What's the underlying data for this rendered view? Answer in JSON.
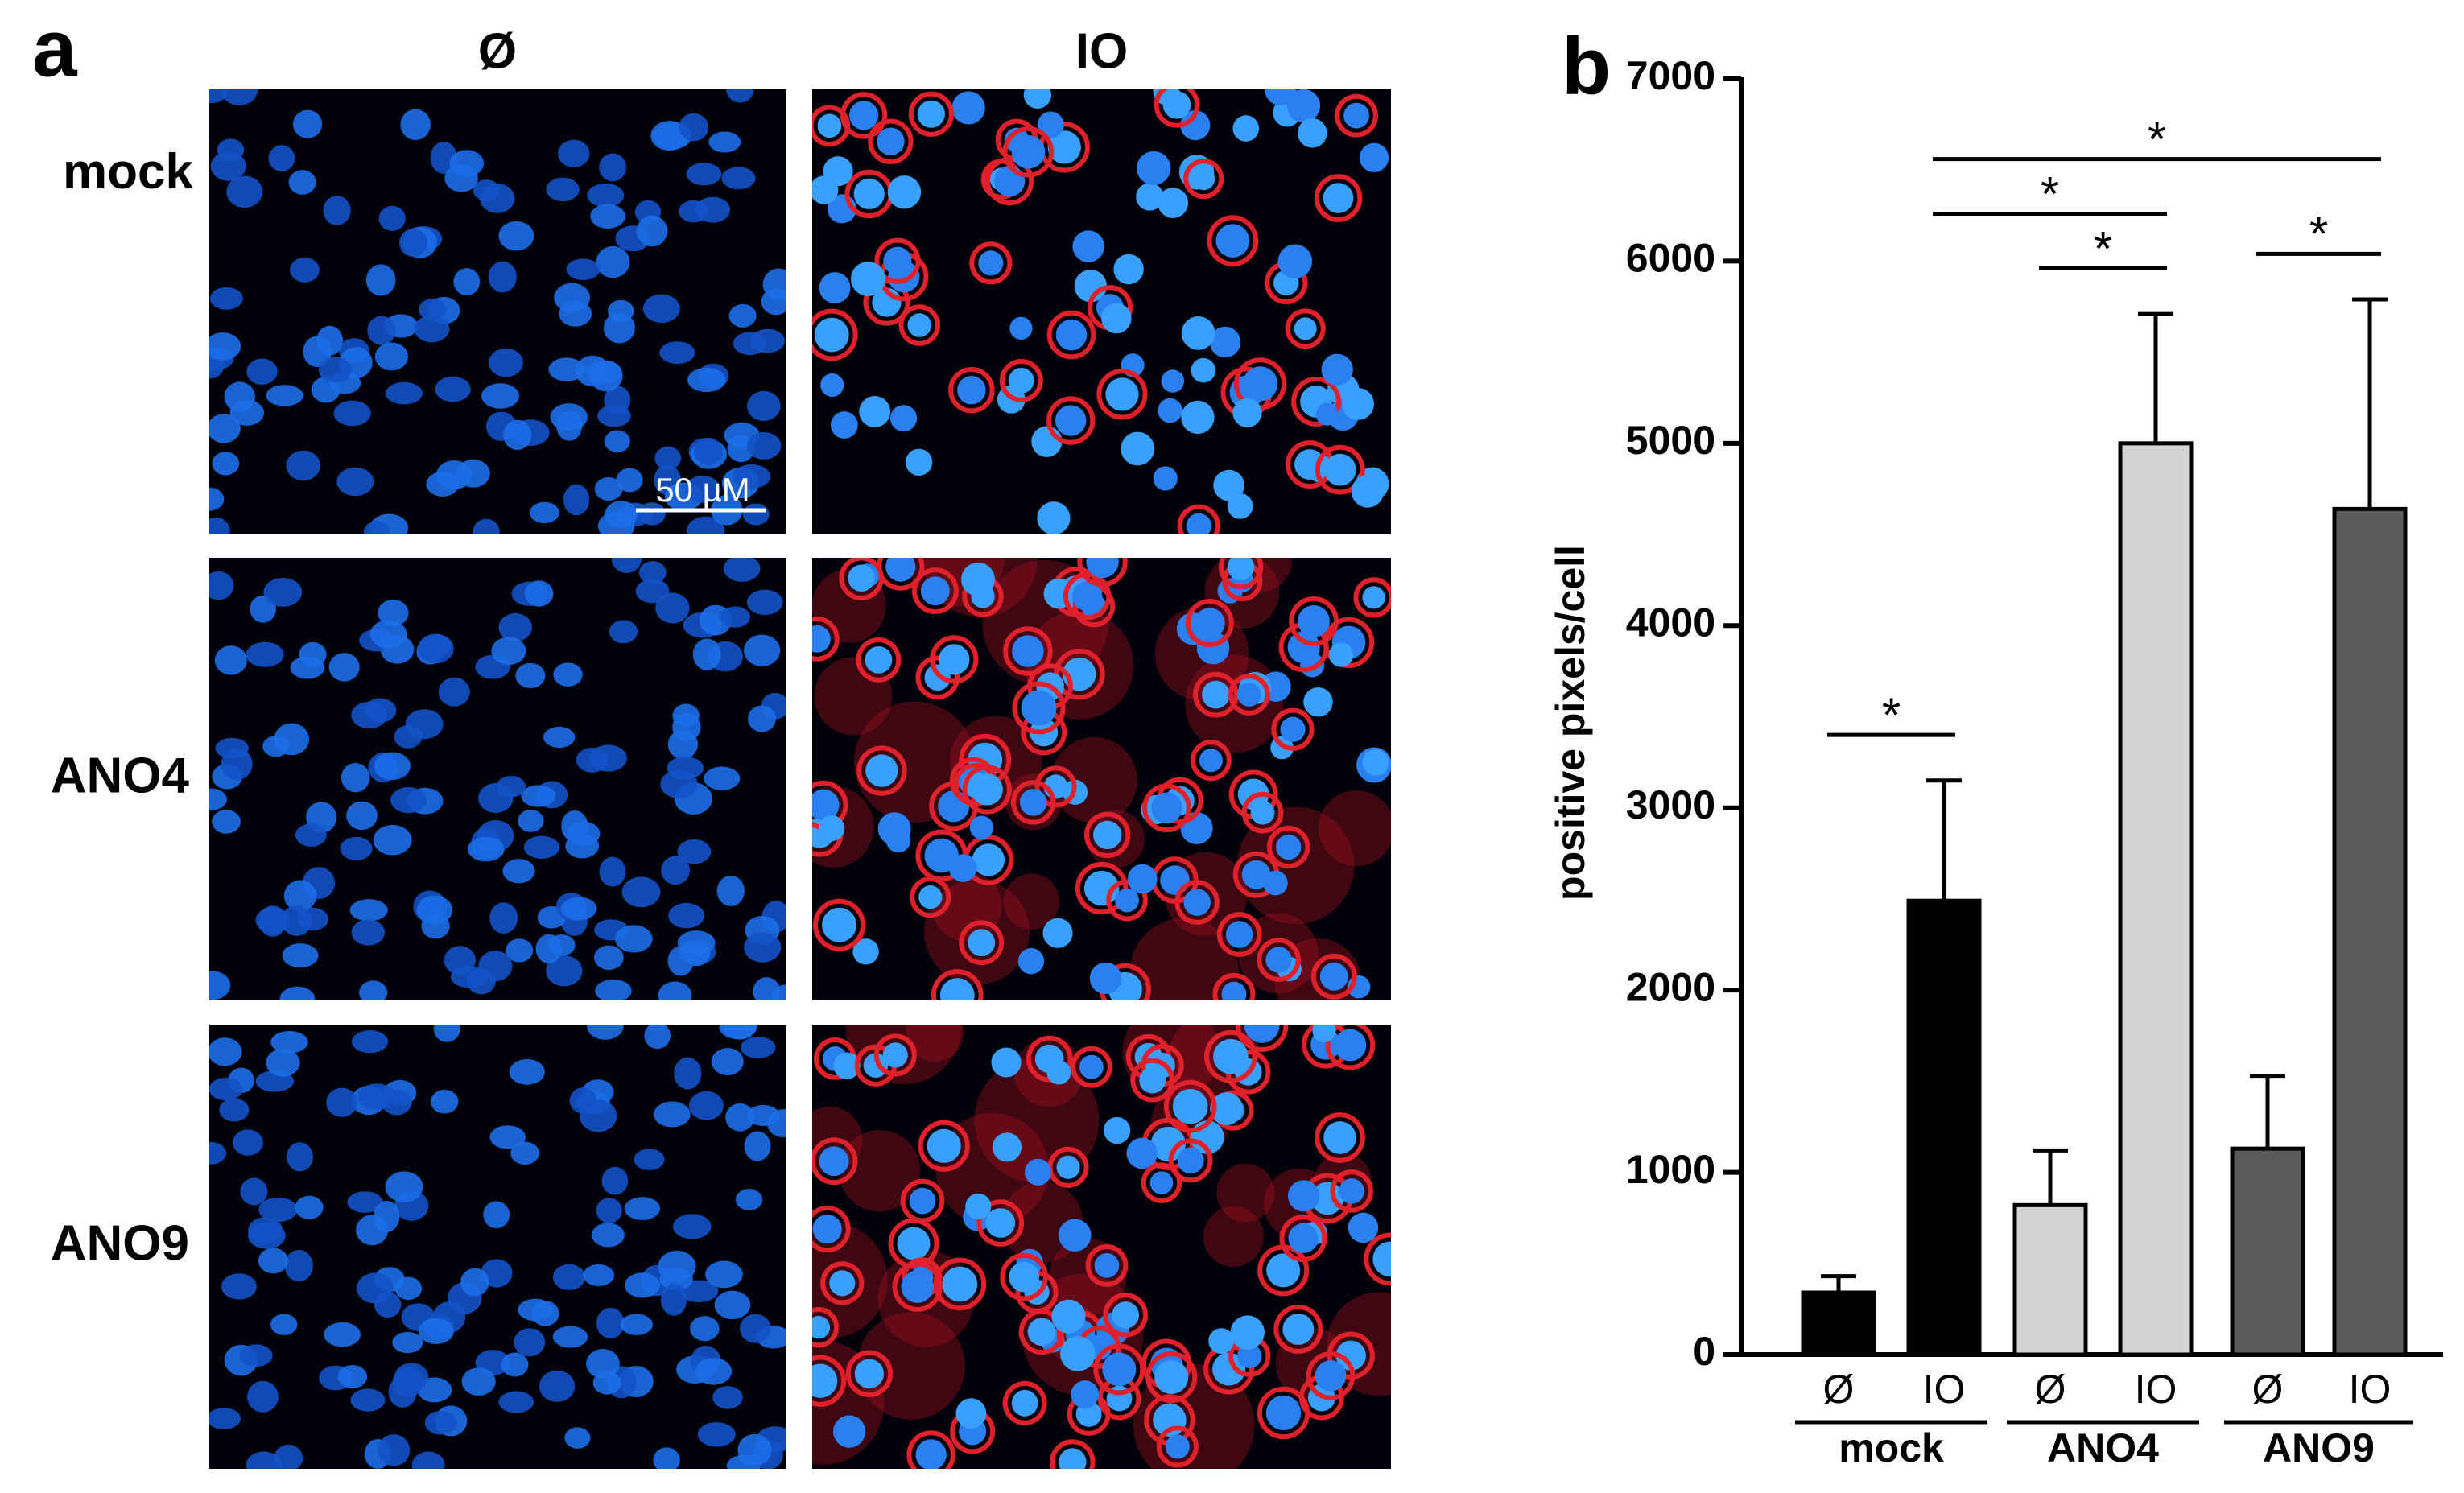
{
  "panel_a": {
    "label": "a",
    "columns": [
      "Ø",
      "IO"
    ],
    "rows": [
      "mock",
      "ANO4",
      "ANO9"
    ],
    "scale_bar": "50 µM"
  },
  "chart_data": {
    "type": "bar",
    "panel_label": "b",
    "ylabel": "positive pixels/cell",
    "categories": [
      "Ø",
      "IO",
      "Ø",
      "IO",
      "Ø",
      "IO"
    ],
    "groups": [
      "mock",
      "ANO4",
      "ANO9"
    ],
    "values": [
      340,
      2490,
      820,
      5000,
      1130,
      4640
    ],
    "errors": [
      90,
      660,
      300,
      710,
      400,
      1150
    ],
    "colors": [
      "#000000",
      "#000000",
      "#d3d3d3",
      "#d3d3d3",
      "#5a5a5a",
      "#5a5a5a"
    ],
    "ylim": [
      0,
      7000
    ],
    "yticks": [
      0,
      1000,
      2000,
      3000,
      4000,
      5000,
      6000,
      7000
    ],
    "annotations": [
      {
        "label": "*",
        "between": [
          0,
          1
        ]
      },
      {
        "label": "*",
        "between": [
          2,
          3
        ]
      },
      {
        "label": "*",
        "between": [
          4,
          5
        ]
      },
      {
        "label": "*",
        "between": [
          1,
          3
        ]
      },
      {
        "label": "*",
        "between": [
          1,
          5
        ]
      }
    ]
  }
}
